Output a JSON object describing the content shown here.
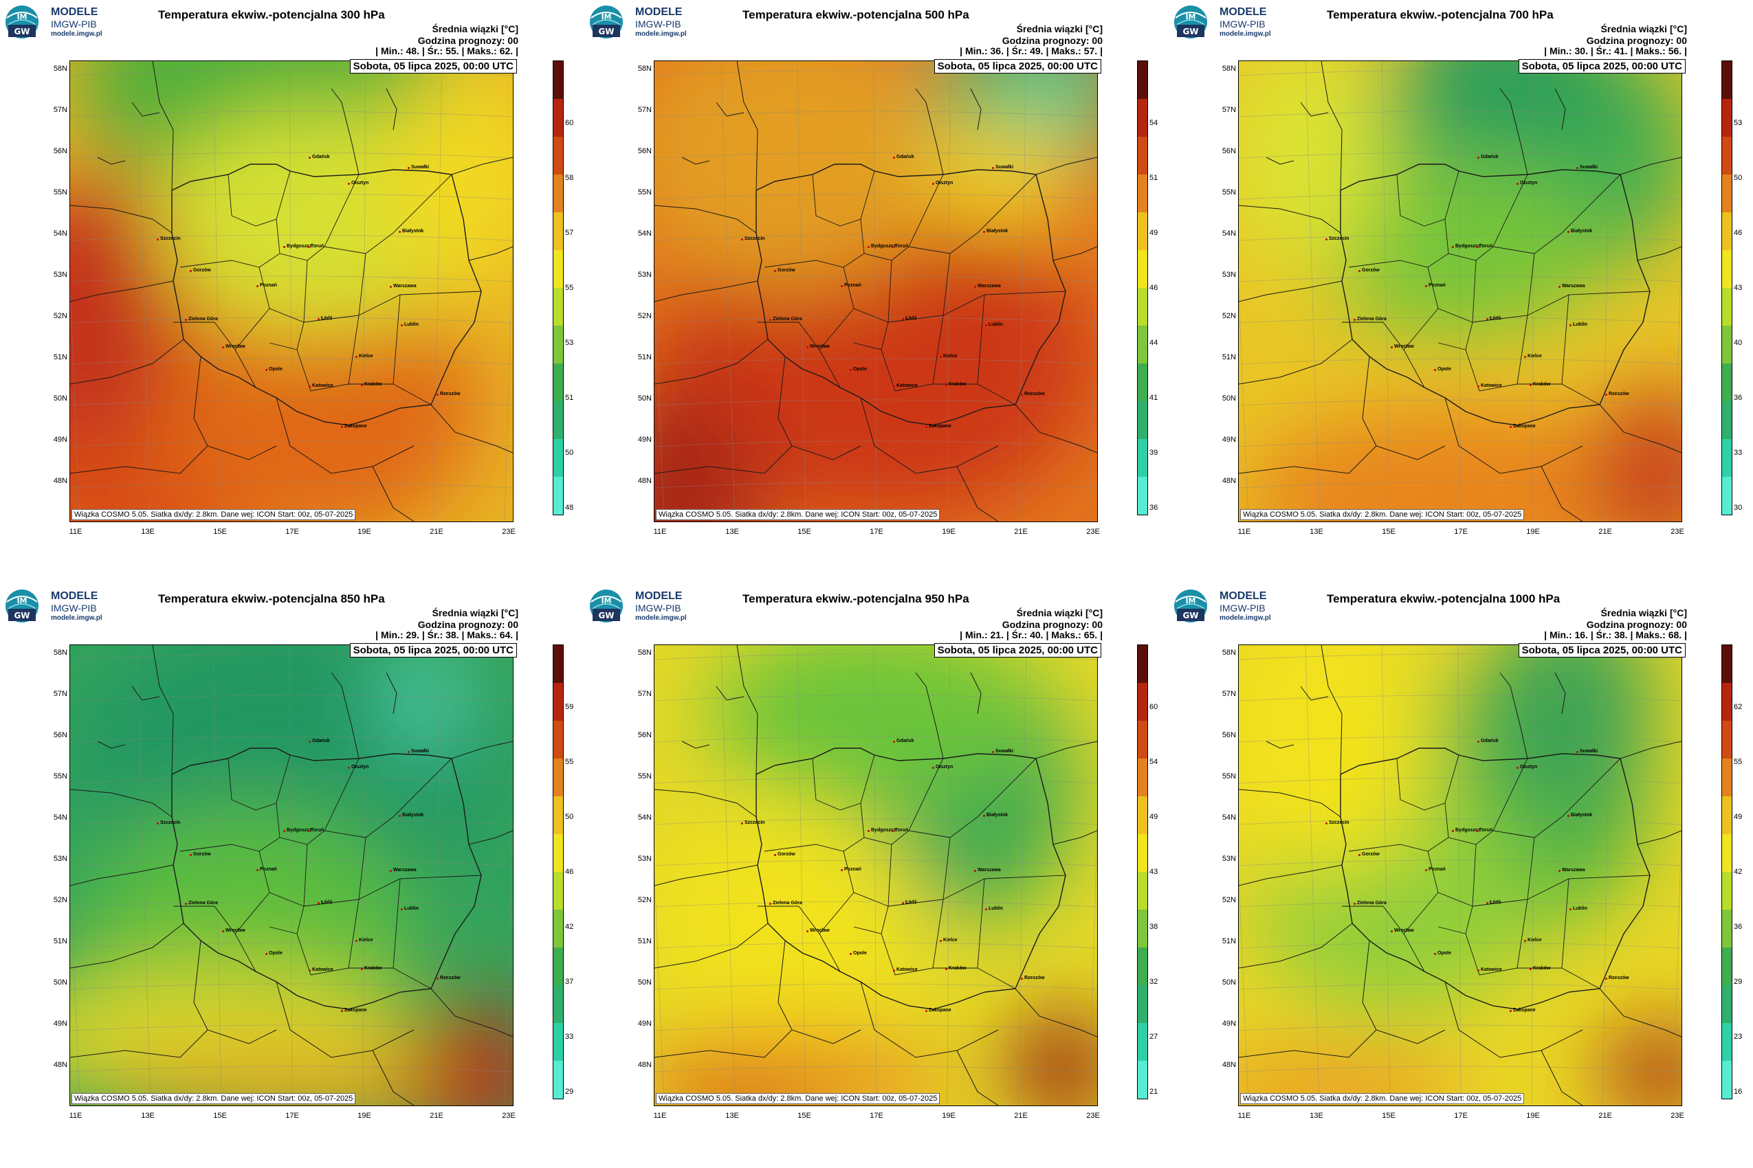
{
  "logo": {
    "line1": "MODELE",
    "line2": "IMGW-PIB",
    "line3": "modele.imgw.pl",
    "mark": "IM GW"
  },
  "common": {
    "subtitle": "Średnia wiązki [°C]",
    "forecast_hour": "Godzina prognozy: 00",
    "date": "Sobota, 05 lipca 2025, 00:00 UTC",
    "footer": "Wiązka COSMO 5.05. Siatka dx/dy: 2.8km. Dane wej: ICON Start: 00z, 05-07-2025",
    "lat_labels": [
      "58N",
      "57N",
      "56N",
      "55N",
      "54N",
      "53N",
      "52N",
      "51N",
      "50N",
      "49N",
      "48N"
    ],
    "lon_labels": [
      "11E",
      "13E",
      "15E",
      "17E",
      "19E",
      "21E",
      "23E"
    ]
  },
  "cities": [
    "Gdańsk",
    "Olsztyn",
    "Szczecin",
    "Bydgoszcz",
    "Toruń",
    "Białystok",
    "Gorzów",
    "Poznań",
    "Warszawa",
    "Zielona Góra",
    "Łódź",
    "Lublin",
    "Wrocław",
    "Kielce",
    "Opole",
    "Katowice",
    "Kraków",
    "Rzeszów",
    "Zakopane",
    "Suwałki"
  ],
  "panels": [
    {
      "title": "Temperatura ekwiw.-potencjalna 300 hPa",
      "stats": "| Min.:     48. | Śr.:     55. | Maks.:     62. |",
      "scale": [
        "60",
        "58",
        "57",
        "55",
        "53",
        "51",
        "50",
        "48"
      ],
      "palette": "warm1"
    },
    {
      "title": "Temperatura ekwiw.-potencjalna 500 hPa",
      "stats": "| Min.:     36. | Śr.:     49. | Maks.:     57. |",
      "scale": [
        "54",
        "51",
        "49",
        "46",
        "44",
        "41",
        "39",
        "36"
      ],
      "palette": "warm2"
    },
    {
      "title": "Temperatura ekwiw.-potencjalna 700 hPa",
      "stats": "| Min.:     30. | Śr.:     41. | Maks.:     56. |",
      "scale": [
        "53",
        "50",
        "46",
        "43",
        "40",
        "36",
        "33",
        "30"
      ],
      "palette": "mid1"
    },
    {
      "title": "Temperatura ekwiw.-potencjalna 850 hPa",
      "stats": "| Min.:     29. | Śr.:     38. | Maks.:     64. |",
      "scale": [
        "59",
        "55",
        "50",
        "46",
        "42",
        "37",
        "33",
        "29"
      ],
      "palette": "cool1"
    },
    {
      "title": "Temperatura ekwiw.-potencjalna 950 hPa",
      "stats": "| Min.:     21. | Śr.:     40. | Maks.:     65. |",
      "scale": [
        "60",
        "54",
        "49",
        "43",
        "38",
        "32",
        "27",
        "21"
      ],
      "palette": "mid2"
    },
    {
      "title": "Temperatura ekwiw.-potencjalna 1000 hPa",
      "stats": "| Min.:     16. | Śr.:     38. | Maks.:     68. |",
      "scale": [
        "62",
        "55",
        "49",
        "42",
        "36",
        "29",
        "23",
        "16"
      ],
      "palette": "mid3"
    }
  ]
}
